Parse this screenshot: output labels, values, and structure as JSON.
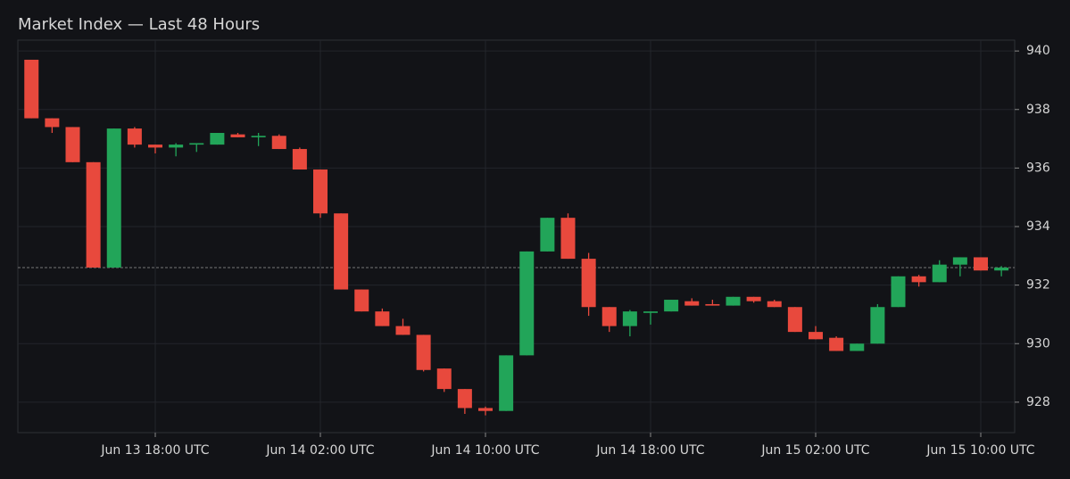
{
  "chart_data": {
    "type": "candlestick",
    "title": "Market Index — Last 48 Hours",
    "x": [
      "Jun 13 12:00",
      "Jun 13 13:00",
      "Jun 13 14:00",
      "Jun 13 15:00",
      "Jun 13 16:00",
      "Jun 13 17:00",
      "Jun 13 18:00",
      "Jun 13 19:00",
      "Jun 13 20:00",
      "Jun 13 21:00",
      "Jun 13 22:00",
      "Jun 13 23:00",
      "Jun 14 00:00",
      "Jun 14 01:00",
      "Jun 14 02:00",
      "Jun 14 03:00",
      "Jun 14 04:00",
      "Jun 14 05:00",
      "Jun 14 06:00",
      "Jun 14 07:00",
      "Jun 14 08:00",
      "Jun 14 09:00",
      "Jun 14 10:00",
      "Jun 14 11:00",
      "Jun 14 12:00",
      "Jun 14 13:00",
      "Jun 14 14:00",
      "Jun 14 15:00",
      "Jun 14 16:00",
      "Jun 14 17:00",
      "Jun 14 18:00",
      "Jun 14 19:00",
      "Jun 14 20:00",
      "Jun 14 21:00",
      "Jun 14 22:00",
      "Jun 14 23:00",
      "Jun 15 00:00",
      "Jun 15 01:00",
      "Jun 15 02:00",
      "Jun 15 03:00",
      "Jun 15 04:00",
      "Jun 15 05:00",
      "Jun 15 06:00",
      "Jun 15 07:00",
      "Jun 15 08:00",
      "Jun 15 09:00",
      "Jun 15 10:00",
      "Jun 15 11:00"
    ],
    "open": [
      939.7,
      937.7,
      937.4,
      936.2,
      932.6,
      937.35,
      936.8,
      936.7,
      936.8,
      936.8,
      937.15,
      937.05,
      937.1,
      936.65,
      935.95,
      934.45,
      931.85,
      931.1,
      930.6,
      930.3,
      929.15,
      928.45,
      927.8,
      927.7,
      929.6,
      933.15,
      934.3,
      932.9,
      931.25,
      930.6,
      931.05,
      931.1,
      931.45,
      931.35,
      931.3,
      931.6,
      931.45,
      931.25,
      930.4,
      930.2,
      929.75,
      930.0,
      931.25,
      932.3,
      932.1,
      932.7,
      932.95,
      932.5
    ],
    "high": [
      939.7,
      937.7,
      937.4,
      936.2,
      937.35,
      937.4,
      936.8,
      936.85,
      936.85,
      937.2,
      937.2,
      937.2,
      937.15,
      936.7,
      935.95,
      934.45,
      931.85,
      931.2,
      930.85,
      930.3,
      929.15,
      928.45,
      927.85,
      929.6,
      933.15,
      934.3,
      934.45,
      933.1,
      931.25,
      931.15,
      931.1,
      931.5,
      931.55,
      931.5,
      931.6,
      931.6,
      931.5,
      931.25,
      930.6,
      930.25,
      930.0,
      931.35,
      932.3,
      932.35,
      932.85,
      932.95,
      932.95,
      932.65
    ],
    "low": [
      937.7,
      937.2,
      936.2,
      932.6,
      932.6,
      936.7,
      936.5,
      936.4,
      936.55,
      936.8,
      937.05,
      936.75,
      936.65,
      935.95,
      934.3,
      931.85,
      931.1,
      930.6,
      930.3,
      929.05,
      928.35,
      927.6,
      927.55,
      927.7,
      929.6,
      933.15,
      932.9,
      930.95,
      930.4,
      930.25,
      930.65,
      931.1,
      931.3,
      931.3,
      931.3,
      931.4,
      931.25,
      930.4,
      930.15,
      929.75,
      929.75,
      930.0,
      931.25,
      931.95,
      932.1,
      932.3,
      932.5,
      932.3
    ],
    "close": [
      937.7,
      937.4,
      936.2,
      932.6,
      937.35,
      936.8,
      936.7,
      936.8,
      936.85,
      937.2,
      937.05,
      937.1,
      936.65,
      935.95,
      934.45,
      931.85,
      931.1,
      930.6,
      930.3,
      929.1,
      928.45,
      927.8,
      927.7,
      929.6,
      933.15,
      934.3,
      932.9,
      931.25,
      930.6,
      931.1,
      931.1,
      931.5,
      931.3,
      931.3,
      931.6,
      931.45,
      931.25,
      930.4,
      930.15,
      929.75,
      930.0,
      931.25,
      932.3,
      932.1,
      932.7,
      932.95,
      932.5,
      932.6
    ],
    "up_color": "#22a559",
    "down_color": "#e8493d",
    "last_price": 932.6,
    "ylim": [
      926.96,
      940.37
    ],
    "yticks": [
      928,
      930,
      932,
      934,
      936,
      938,
      940
    ],
    "xticks": [
      {
        "value": "Jun 13 18:00",
        "label": "Jun 13 18:00 UTC"
      },
      {
        "value": "Jun 14 02:00",
        "label": "Jun 14 02:00 UTC"
      },
      {
        "value": "Jun 14 10:00",
        "label": "Jun 14 10:00 UTC"
      },
      {
        "value": "Jun 14 18:00",
        "label": "Jun 14 18:00 UTC"
      },
      {
        "value": "Jun 15 02:00",
        "label": "Jun 15 02:00 UTC"
      },
      {
        "value": "Jun 15 10:00",
        "label": "Jun 15 10:00 UTC"
      }
    ],
    "grid": true
  }
}
